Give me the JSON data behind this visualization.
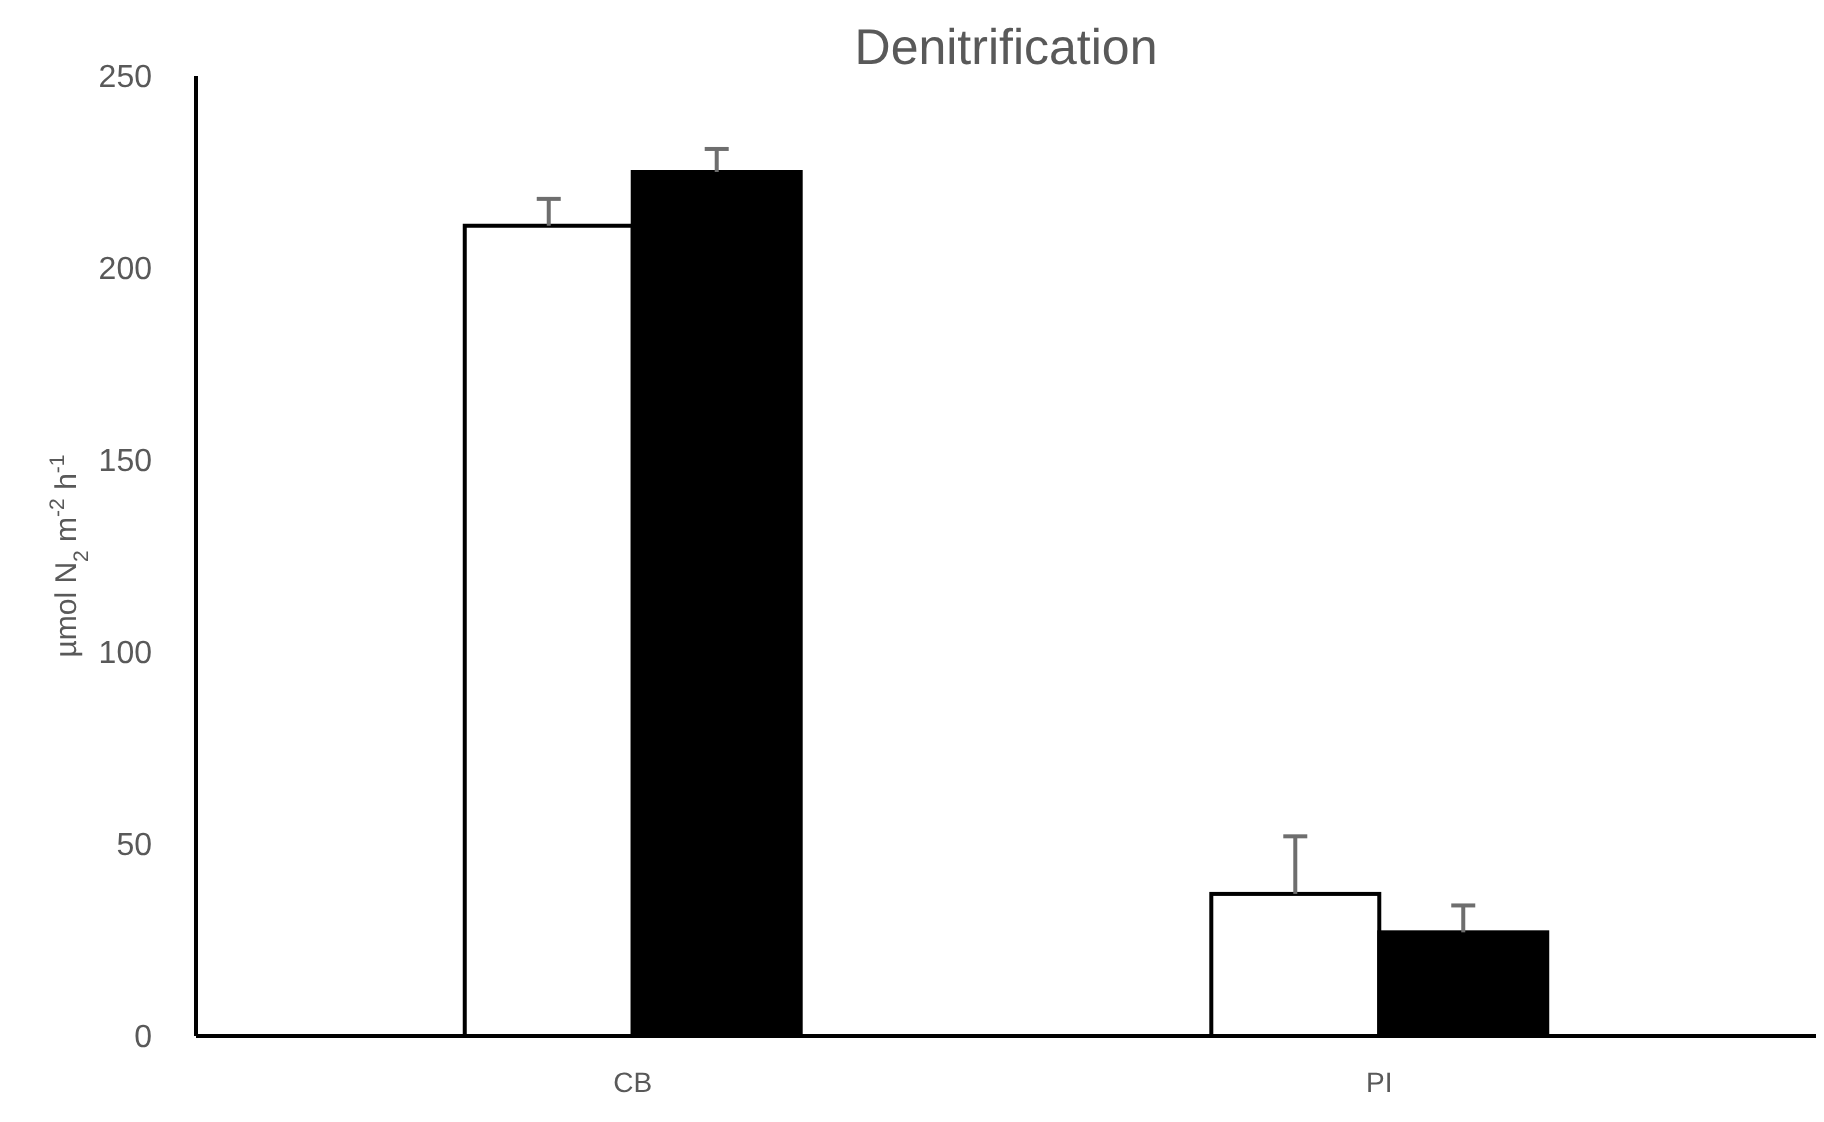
{
  "chart_data": {
    "type": "bar",
    "title": "Denitrification",
    "ylabel": "µmol N$_{2}$ m$^{-2}$ h$^{-1}$",
    "categories": [
      "CB",
      "PI"
    ],
    "series": [
      {
        "color": "#ffffff",
        "values": [
          211,
          37
        ],
        "errors": [
          [
            211,
            218
          ],
          [
            37,
            52
          ]
        ]
      },
      {
        "color": "#000000",
        "values": [
          225,
          27
        ],
        "errors": [
          [
            225,
            231
          ],
          [
            27,
            34
          ]
        ]
      }
    ],
    "ylim": [
      0,
      250
    ],
    "yticks": [
      0,
      50,
      100,
      150,
      200,
      250
    ],
    "grid": false
  }
}
